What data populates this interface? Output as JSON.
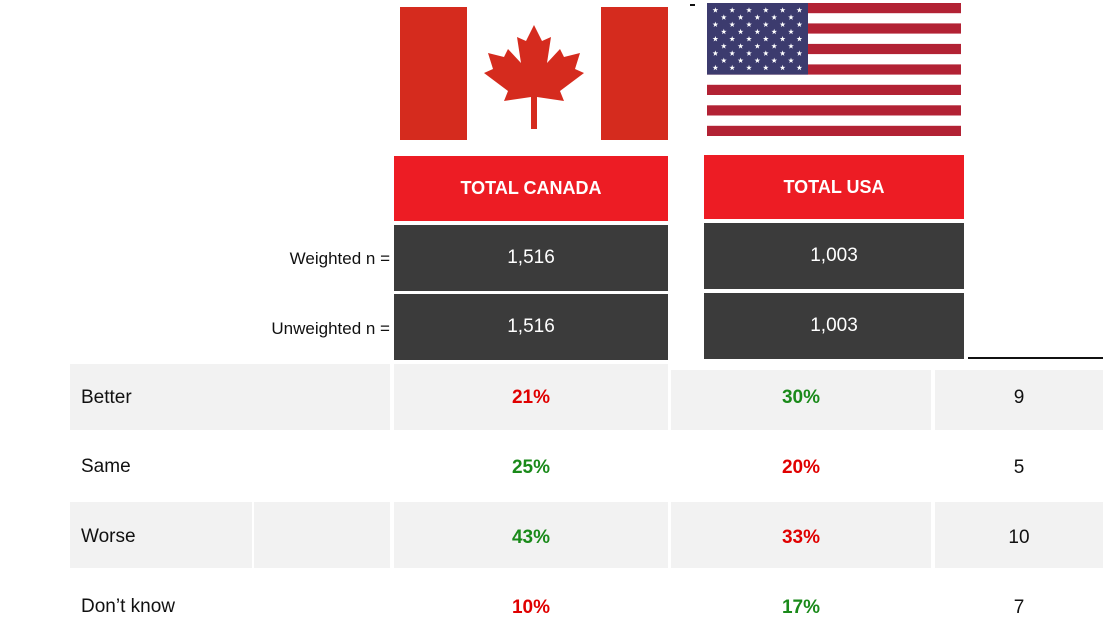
{
  "columns": [
    {
      "label": "TOTAL CANADA",
      "weighted_n": "1,516",
      "unweighted_n": "1,516"
    },
    {
      "label": "TOTAL USA",
      "weighted_n": "1,003",
      "unweighted_n": "1,003"
    }
  ],
  "labels": {
    "weighted": "Weighted n =",
    "unweighted": "Unweighted n ="
  },
  "rows": [
    {
      "label": "Better",
      "canada": "21%",
      "usa": "30%",
      "diff": "9"
    },
    {
      "label": "Same",
      "canada": "25%",
      "usa": "20%",
      "diff": "5"
    },
    {
      "label": "Worse",
      "canada": "43%",
      "usa": "33%",
      "diff": "10"
    },
    {
      "label": "Don’t know",
      "canada": "10%",
      "usa": "17%",
      "diff": "7"
    }
  ],
  "colors": {
    "header_red": "#ed1c24",
    "dark_box": "#3b3b3b",
    "lower_value": "#e00000",
    "higher_value": "#1a8a1a",
    "row_shade": "#f2f2f2"
  },
  "icons": {
    "canada_flag": "canada-flag-icon",
    "usa_flag": "usa-flag-icon"
  }
}
